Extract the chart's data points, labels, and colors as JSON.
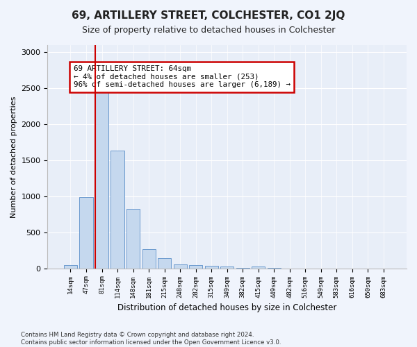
{
  "title": "69, ARTILLERY STREET, COLCHESTER, CO1 2JQ",
  "subtitle": "Size of property relative to detached houses in Colchester",
  "xlabel": "Distribution of detached houses by size in Colchester",
  "ylabel": "Number of detached properties",
  "categories": [
    "14sqm",
    "47sqm",
    "81sqm",
    "114sqm",
    "148sqm",
    "181sqm",
    "215sqm",
    "248sqm",
    "282sqm",
    "315sqm",
    "349sqm",
    "382sqm",
    "415sqm",
    "449sqm",
    "482sqm",
    "516sqm",
    "549sqm",
    "583sqm",
    "616sqm",
    "650sqm",
    "683sqm"
  ],
  "values": [
    50,
    990,
    2450,
    1640,
    830,
    265,
    140,
    55,
    50,
    40,
    30,
    5,
    25,
    5,
    0,
    0,
    0,
    0,
    0,
    0,
    0
  ],
  "bar_color": "#c5d8ee",
  "bar_edge_color": "#5b8fc9",
  "vline_color": "#cc0000",
  "vline_x": 1.575,
  "annotation_text": "69 ARTILLERY STREET: 64sqm\n← 4% of detached houses are smaller (253)\n96% of semi-detached houses are larger (6,189) →",
  "annotation_box_facecolor": "#ffffff",
  "annotation_box_edgecolor": "#cc0000",
  "ylim": [
    0,
    3100
  ],
  "yticks": [
    0,
    500,
    1000,
    1500,
    2000,
    2500,
    3000
  ],
  "fig_facecolor": "#f0f4fc",
  "ax_facecolor": "#e8eef8",
  "grid_color": "#ffffff",
  "title_fontsize": 11,
  "subtitle_fontsize": 9,
  "footer": "Contains HM Land Registry data © Crown copyright and database right 2024.\nContains public sector information licensed under the Open Government Licence v3.0."
}
